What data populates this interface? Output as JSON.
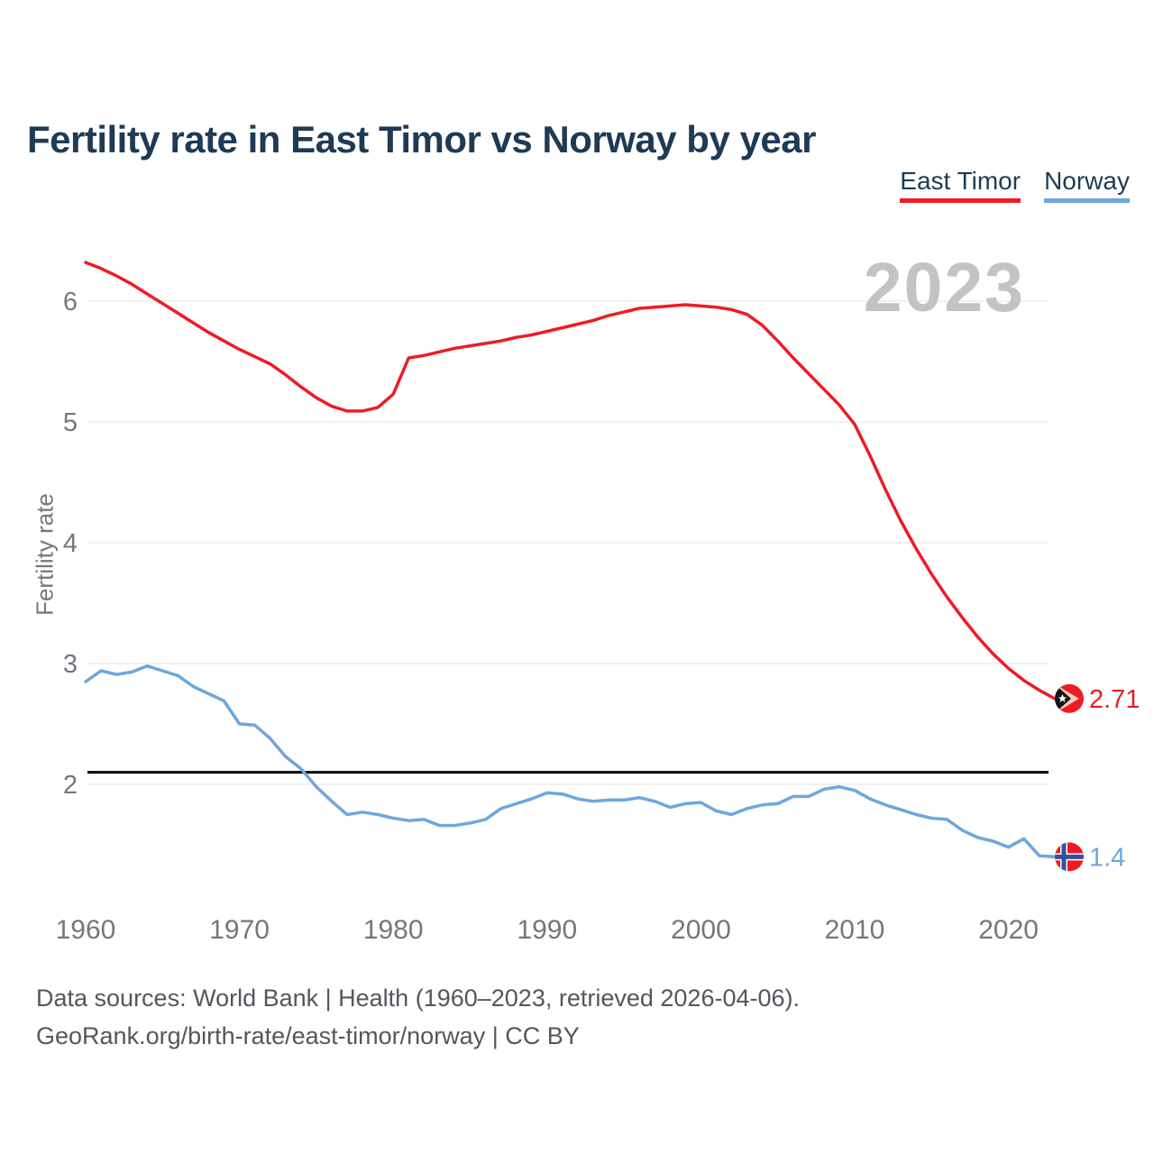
{
  "title": "Fertility rate in East Timor vs Norway by year",
  "watermark": "2023",
  "legend": [
    {
      "label": "East Timor",
      "color": "#ED1C24"
    },
    {
      "label": "Norway",
      "color": "#6FA6DD"
    }
  ],
  "footer": {
    "line1": "Data sources: World Bank | Health (1960–2023, retrieved 2026-04-06).",
    "line2": "GeoRank.org/birth-rate/east-timor/norway | CC BY"
  },
  "chart_data": {
    "type": "line",
    "title": "Fertility rate in East Timor vs Norway by year",
    "xlabel": "",
    "ylabel": "Fertility rate",
    "ylim": [
      1.2,
      6.5
    ],
    "grid": true,
    "legend_position": "top-right",
    "reference_line": 2.1,
    "year_label": "2023",
    "y_ticks": [
      2,
      3,
      4,
      5,
      6
    ],
    "x_ticks": [
      1960,
      1970,
      1980,
      1990,
      2000,
      2010,
      2020
    ],
    "x": [
      1960,
      1961,
      1962,
      1963,
      1964,
      1965,
      1966,
      1967,
      1968,
      1969,
      1970,
      1971,
      1972,
      1973,
      1974,
      1975,
      1976,
      1977,
      1978,
      1979,
      1980,
      1981,
      1982,
      1983,
      1984,
      1985,
      1986,
      1987,
      1988,
      1989,
      1990,
      1991,
      1992,
      1993,
      1994,
      1995,
      1996,
      1997,
      1998,
      1999,
      2000,
      2001,
      2002,
      2003,
      2004,
      2005,
      2006,
      2007,
      2008,
      2009,
      2010,
      2011,
      2012,
      2013,
      2014,
      2015,
      2016,
      2017,
      2018,
      2019,
      2020,
      2021,
      2022,
      2023
    ],
    "series": [
      {
        "name": "East Timor",
        "color": "#ED1C24",
        "end_label": "2.71",
        "end_value": 2.71,
        "values": [
          6.32,
          6.27,
          6.21,
          6.14,
          6.06,
          5.98,
          5.9,
          5.82,
          5.74,
          5.67,
          5.6,
          5.54,
          5.48,
          5.39,
          5.29,
          5.2,
          5.13,
          5.09,
          5.09,
          5.12,
          5.23,
          5.53,
          5.55,
          5.58,
          5.61,
          5.63,
          5.65,
          5.67,
          5.7,
          5.72,
          5.75,
          5.78,
          5.81,
          5.84,
          5.88,
          5.91,
          5.94,
          5.95,
          5.96,
          5.97,
          5.96,
          5.95,
          5.93,
          5.89,
          5.8,
          5.67,
          5.53,
          5.4,
          5.27,
          5.14,
          4.98,
          4.72,
          4.44,
          4.18,
          3.95,
          3.74,
          3.55,
          3.38,
          3.22,
          3.08,
          2.96,
          2.86,
          2.78,
          2.71
        ]
      },
      {
        "name": "Norway",
        "color": "#6FA6DD",
        "end_label": "1.4",
        "end_value": 1.4,
        "values": [
          2.85,
          2.94,
          2.91,
          2.93,
          2.98,
          2.94,
          2.9,
          2.81,
          2.75,
          2.69,
          2.5,
          2.49,
          2.38,
          2.23,
          2.13,
          1.98,
          1.86,
          1.75,
          1.77,
          1.75,
          1.72,
          1.7,
          1.71,
          1.66,
          1.66,
          1.68,
          1.71,
          1.8,
          1.84,
          1.88,
          1.93,
          1.92,
          1.88,
          1.86,
          1.87,
          1.87,
          1.89,
          1.86,
          1.81,
          1.84,
          1.85,
          1.78,
          1.75,
          1.8,
          1.83,
          1.84,
          1.9,
          1.9,
          1.96,
          1.98,
          1.95,
          1.88,
          1.83,
          1.79,
          1.75,
          1.72,
          1.71,
          1.62,
          1.56,
          1.53,
          1.48,
          1.55,
          1.41,
          1.4
        ]
      }
    ]
  }
}
